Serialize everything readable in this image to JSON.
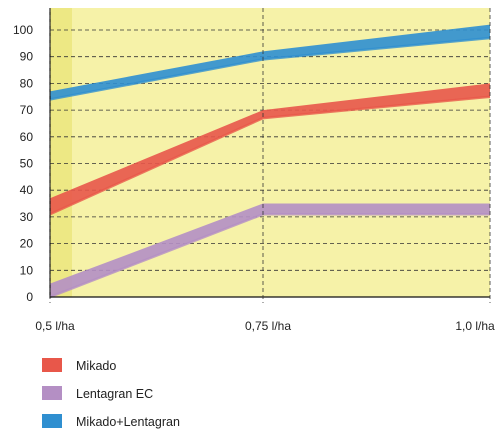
{
  "chart_data": {
    "type": "area",
    "x": [
      "0,5 l/ha",
      "0,75 l/ha",
      "1,0 l/ha"
    ],
    "ylim": [
      0,
      100
    ],
    "yticks": [
      "0",
      "10",
      "20",
      "30",
      "40",
      "50",
      "60",
      "70",
      "80",
      "90",
      "100"
    ],
    "grid": "dashed horizontal",
    "legend_position": "bottom-left",
    "series": [
      {
        "name": "Mikado",
        "color": "#e8574a",
        "lower": [
          31,
          67,
          75
        ],
        "upper": [
          37,
          70,
          80
        ]
      },
      {
        "name": "Lentagran EC",
        "color": "#b48fc4",
        "lower": [
          0,
          31,
          31
        ],
        "upper": [
          5,
          35,
          35
        ]
      },
      {
        "name": "Mikado+Lentagran",
        "color": "#2f8fd0",
        "lower": [
          74,
          89,
          97
        ],
        "upper": [
          77,
          92,
          102
        ]
      }
    ]
  }
}
